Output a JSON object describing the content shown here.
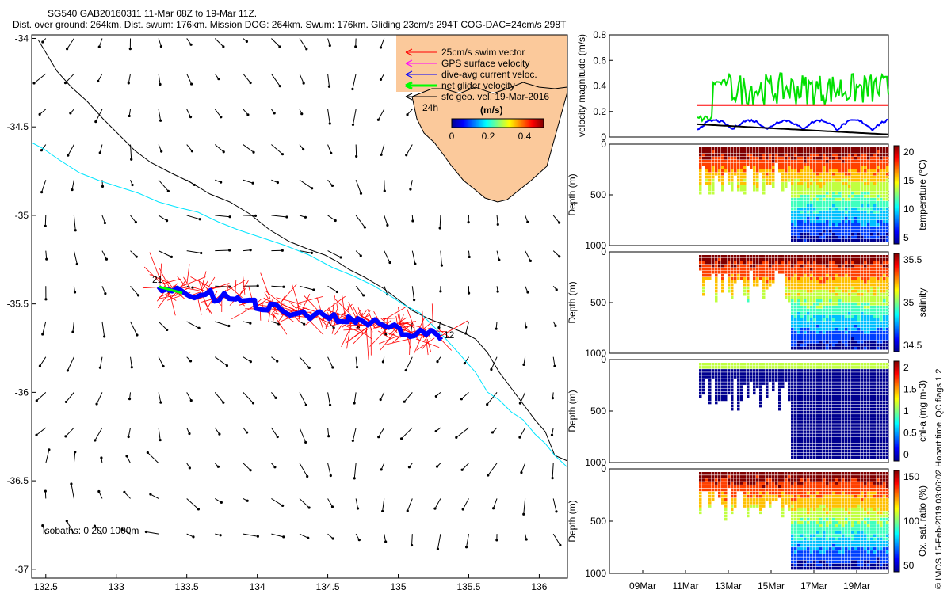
{
  "header": {
    "line1": "SG540 GAB20160311 11-Mar 08Z to 19-Mar 11Z.",
    "line2": "Dist. over ground: 264km. Dist. swum: 176km. Mission DOG: 264km. Swum: 176km. Gliding 23cm/s 294T COG-DAC=24cm/s 298T"
  },
  "credit": "© IMOS 15-Feb-2019 03:06:02 Hobart time. QC flags 1  2",
  "chart_data": [
    {
      "type": "map",
      "x": {
        "ticks": [
          "132.5",
          "133",
          "133.5",
          "134",
          "134.5",
          "135",
          "135.5",
          "136"
        ],
        "range": [
          132.4,
          136.2
        ]
      },
      "y": {
        "ticks": [
          "-34",
          "-34.5",
          "-35",
          "-35.5",
          "-36",
          "-36.5",
          "-37"
        ],
        "range": [
          -37.05,
          -33.98
        ]
      },
      "legend": [
        {
          "label": "25cm/s swim vector",
          "color": "#ff0000"
        },
        {
          "label": "GPS surface velocity",
          "color": "#ff00ff"
        },
        {
          "label": "dive-avg current veloc.",
          "color": "#0000ff"
        },
        {
          "label": "net glider velocity",
          "color": "#00ff00"
        },
        {
          "label": "sfc geo. vel. 19-Mar-2016",
          "color": "#000000"
        }
      ],
      "colorbar": {
        "title": "(m/s)",
        "ticks": [
          "0",
          "0.2",
          "0.4"
        ],
        "range": [
          0,
          0.5
        ],
        "side_label": "24h"
      },
      "track_labels": {
        "start": "21",
        "end": "12"
      },
      "isobaths_label": "isobaths: 0   200  1000m",
      "colors": {
        "land": "#fbc99b",
        "isobath_200": "#00e5ff",
        "isobath_1000": "#000000"
      }
    },
    {
      "type": "line",
      "ylabel": "velocity magnitude (m/s)",
      "ylim": [
        0,
        0.8
      ],
      "yticks": [
        "0",
        "0.2",
        "0.4",
        "0.6",
        "0.8"
      ],
      "xticks": [
        "09Mar",
        "11Mar",
        "13Mar",
        "15Mar",
        "17Mar",
        "19Mar"
      ],
      "series": [
        {
          "name": "net glider velocity",
          "color": "#00e000"
        },
        {
          "name": "swim speed",
          "color": "#ff0000",
          "constant": 0.25
        },
        {
          "name": "dive-avg current",
          "color": "#0000ff"
        },
        {
          "name": "sfc geo. vel.",
          "color": "#000000"
        }
      ]
    },
    {
      "type": "heatmap",
      "ylabel": "Depth (m)",
      "clabel": "temperature (°C)",
      "yticks": [
        "0",
        "500",
        "1000"
      ],
      "cticks": [
        "20",
        "15",
        "10",
        "5"
      ],
      "crange": [
        3,
        22
      ]
    },
    {
      "type": "heatmap",
      "ylabel": "Depth (m)",
      "clabel": "salinity",
      "yticks": [
        "0",
        "500",
        "1000"
      ],
      "cticks": [
        "35.5",
        "35",
        "34.5"
      ],
      "crange": [
        34.3,
        35.8
      ]
    },
    {
      "type": "heatmap",
      "ylabel": "Depth (m)",
      "clabel": "chl-a (mg m-3)",
      "yticks": [
        "0",
        "500",
        "1000"
      ],
      "cticks": [
        "2",
        "1.5",
        "1",
        "0.5",
        "0"
      ],
      "crange": [
        0,
        2
      ]
    },
    {
      "type": "heatmap",
      "ylabel": "Depth (m)",
      "clabel": "Ox. sat. ratio (%)",
      "yticks": [
        "0",
        "500",
        "1000"
      ],
      "cticks": [
        "150",
        "100",
        "50"
      ],
      "crange": [
        25,
        175
      ]
    }
  ]
}
